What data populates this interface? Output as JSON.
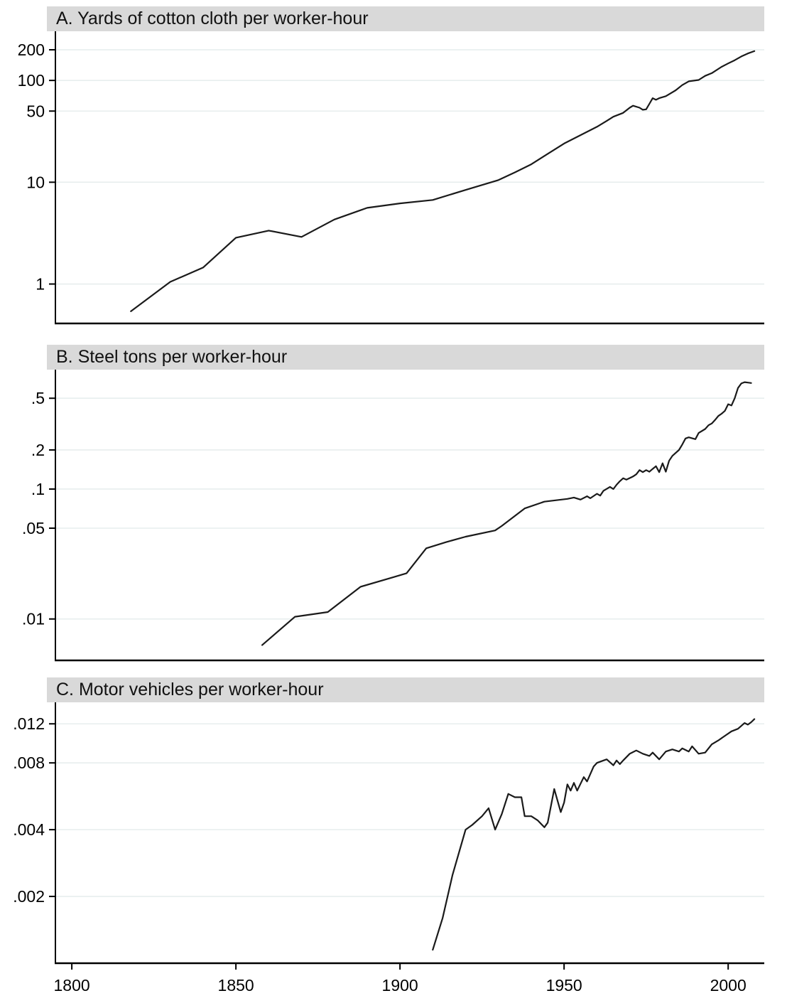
{
  "figure": {
    "colors": {
      "line": "#1a1a1a",
      "grid": "#e7eeee",
      "banner_bg": "#d9d9d9",
      "axis": "#000000",
      "text": "#000000",
      "background": "#ffffff"
    },
    "x_axis": {
      "range": [
        1795,
        2011
      ],
      "ticks": [
        {
          "label": "1800",
          "value": 1800
        },
        {
          "label": "1850",
          "value": 1850
        },
        {
          "label": "1900",
          "value": 1900
        },
        {
          "label": "1950",
          "value": 1950
        },
        {
          "label": "2000",
          "value": 2000
        }
      ]
    }
  },
  "chart_data": [
    {
      "type": "line",
      "panel_id": "A",
      "title": "A. Yards of cotton cloth per worker-hour",
      "yscale": "log",
      "ylim": [
        0.41,
        304
      ],
      "grid": true,
      "legend": "none",
      "y_ticks": [
        {
          "label": "200",
          "value": 200
        },
        {
          "label": "100",
          "value": 100
        },
        {
          "label": "50",
          "value": 50
        },
        {
          "label": "10",
          "value": 10
        },
        {
          "label": "1",
          "value": 1
        }
      ],
      "series": [
        {
          "name": "yards-of-cotton-cloth-per-worker-hour",
          "points": [
            [
              1818,
              0.54
            ],
            [
              1830,
              1.05
            ],
            [
              1840,
              1.45
            ],
            [
              1850,
              2.85
            ],
            [
              1860,
              3.35
            ],
            [
              1870,
              2.9
            ],
            [
              1880,
              4.3
            ],
            [
              1890,
              5.6
            ],
            [
              1900,
              6.2
            ],
            [
              1910,
              6.7
            ],
            [
              1920,
              8.4
            ],
            [
              1930,
              10.5
            ],
            [
              1935,
              12.5
            ],
            [
              1940,
              15
            ],
            [
              1945,
              19
            ],
            [
              1950,
              24
            ],
            [
              1955,
              29
            ],
            [
              1960,
              35
            ],
            [
              1963,
              40
            ],
            [
              1965,
              44
            ],
            [
              1968,
              48
            ],
            [
              1970,
              54
            ],
            [
              1971,
              56.5
            ],
            [
              1973,
              54
            ],
            [
              1974,
              51.5
            ],
            [
              1975,
              52
            ],
            [
              1976,
              59
            ],
            [
              1977,
              67
            ],
            [
              1978,
              64.5
            ],
            [
              1979,
              67
            ],
            [
              1981,
              70
            ],
            [
              1984,
              80
            ],
            [
              1986,
              90
            ],
            [
              1988,
              98
            ],
            [
              1991,
              101
            ],
            [
              1993,
              111
            ],
            [
              1995,
              118
            ],
            [
              1998,
              136
            ],
            [
              2000,
              147
            ],
            [
              2002,
              158
            ],
            [
              2004,
              172
            ],
            [
              2006,
              184
            ],
            [
              2008,
              194
            ]
          ]
        }
      ]
    },
    {
      "type": "line",
      "panel_id": "B",
      "title": "B. Steel tons per worker-hour",
      "yscale": "log",
      "ylim": [
        0.0048,
        0.83
      ],
      "grid": true,
      "legend": "none",
      "y_ticks": [
        {
          "label": ".5",
          "value": 0.5
        },
        {
          "label": ".2",
          "value": 0.2
        },
        {
          "label": ".1",
          "value": 0.1
        },
        {
          "label": ".05",
          "value": 0.05
        },
        {
          "label": ".01",
          "value": 0.01
        }
      ],
      "series": [
        {
          "name": "steel-tons-per-worker-hour",
          "points": [
            [
              1858,
              0.0063
            ],
            [
              1868,
              0.0104
            ],
            [
              1878,
              0.0113
            ],
            [
              1888,
              0.0177
            ],
            [
              1898,
              0.021
            ],
            [
              1902,
              0.0225
            ],
            [
              1908,
              0.035
            ],
            [
              1914,
              0.039
            ],
            [
              1920,
              0.043
            ],
            [
              1929,
              0.048
            ],
            [
              1931,
              0.052
            ],
            [
              1938,
              0.071
            ],
            [
              1944,
              0.08
            ],
            [
              1951,
              0.084
            ],
            [
              1953,
              0.086
            ],
            [
              1955,
              0.083
            ],
            [
              1957,
              0.088
            ],
            [
              1958,
              0.085
            ],
            [
              1960,
              0.092
            ],
            [
              1961,
              0.089
            ],
            [
              1962,
              0.097
            ],
            [
              1964,
              0.104
            ],
            [
              1965,
              0.1
            ],
            [
              1966,
              0.108
            ],
            [
              1967,
              0.115
            ],
            [
              1968,
              0.121
            ],
            [
              1969,
              0.118
            ],
            [
              1971,
              0.125
            ],
            [
              1972,
              0.13
            ],
            [
              1973,
              0.14
            ],
            [
              1974,
              0.135
            ],
            [
              1975,
              0.14
            ],
            [
              1976,
              0.136
            ],
            [
              1977,
              0.143
            ],
            [
              1978,
              0.15
            ],
            [
              1979,
              0.135
            ],
            [
              1980,
              0.158
            ],
            [
              1981,
              0.136
            ],
            [
              1982,
              0.165
            ],
            [
              1983,
              0.18
            ],
            [
              1985,
              0.2
            ],
            [
              1986,
              0.22
            ],
            [
              1987,
              0.245
            ],
            [
              1988,
              0.25
            ],
            [
              1990,
              0.242
            ],
            [
              1991,
              0.27
            ],
            [
              1993,
              0.29
            ],
            [
              1994,
              0.31
            ],
            [
              1995,
              0.32
            ],
            [
              1996,
              0.34
            ],
            [
              1997,
              0.365
            ],
            [
              1998,
              0.38
            ],
            [
              1999,
              0.4
            ],
            [
              2000,
              0.45
            ],
            [
              2001,
              0.44
            ],
            [
              2002,
              0.5
            ],
            [
              2003,
              0.6
            ],
            [
              2004,
              0.65
            ],
            [
              2005,
              0.665
            ],
            [
              2006,
              0.66
            ],
            [
              2007,
              0.655
            ]
          ]
        }
      ]
    },
    {
      "type": "line",
      "panel_id": "C",
      "title": "C. Motor vehicles per worker-hour",
      "yscale": "log",
      "ylim": [
        0.001,
        0.015
      ],
      "grid": true,
      "legend": "none",
      "y_ticks": [
        {
          "label": ".012",
          "value": 0.012
        },
        {
          "label": ".008",
          "value": 0.008
        },
        {
          "label": ".004",
          "value": 0.004
        },
        {
          "label": ".002",
          "value": 0.002
        }
      ],
      "series": [
        {
          "name": "motor-vehicles-per-worker-hour",
          "points": [
            [
              1910,
              0.00115
            ],
            [
              1913,
              0.0016
            ],
            [
              1916,
              0.0025
            ],
            [
              1920,
              0.004
            ],
            [
              1922,
              0.0042
            ],
            [
              1925,
              0.0046
            ],
            [
              1927,
              0.005
            ],
            [
              1929,
              0.004
            ],
            [
              1931,
              0.0047
            ],
            [
              1933,
              0.0058
            ],
            [
              1935,
              0.0056
            ],
            [
              1937,
              0.0056
            ],
            [
              1938,
              0.0046
            ],
            [
              1940,
              0.0046
            ],
            [
              1942,
              0.0044
            ],
            [
              1944,
              0.0041
            ],
            [
              1945,
              0.0043
            ],
            [
              1947,
              0.0061
            ],
            [
              1949,
              0.0048
            ],
            [
              1950,
              0.0053
            ],
            [
              1951,
              0.0064
            ],
            [
              1952,
              0.006
            ],
            [
              1953,
              0.0065
            ],
            [
              1954,
              0.006
            ],
            [
              1956,
              0.0069
            ],
            [
              1957,
              0.0066
            ],
            [
              1959,
              0.0077
            ],
            [
              1960,
              0.008
            ],
            [
              1962,
              0.0082
            ],
            [
              1963,
              0.0083
            ],
            [
              1965,
              0.0078
            ],
            [
              1966,
              0.0082
            ],
            [
              1967,
              0.0079
            ],
            [
              1968,
              0.0082
            ],
            [
              1970,
              0.0088
            ],
            [
              1972,
              0.0091
            ],
            [
              1974,
              0.0088
            ],
            [
              1976,
              0.0086
            ],
            [
              1977,
              0.0089
            ],
            [
              1979,
              0.0083
            ],
            [
              1981,
              0.009
            ],
            [
              1983,
              0.0092
            ],
            [
              1985,
              0.009
            ],
            [
              1986,
              0.0093
            ],
            [
              1988,
              0.009
            ],
            [
              1989,
              0.0095
            ],
            [
              1991,
              0.0088
            ],
            [
              1993,
              0.0089
            ],
            [
              1995,
              0.0097
            ],
            [
              1997,
              0.0101
            ],
            [
              1999,
              0.0106
            ],
            [
              2001,
              0.0111
            ],
            [
              2003,
              0.0114
            ],
            [
              2005,
              0.0121
            ],
            [
              2006,
              0.0119
            ],
            [
              2007,
              0.0122
            ],
            [
              2008,
              0.0126
            ]
          ]
        }
      ]
    }
  ]
}
